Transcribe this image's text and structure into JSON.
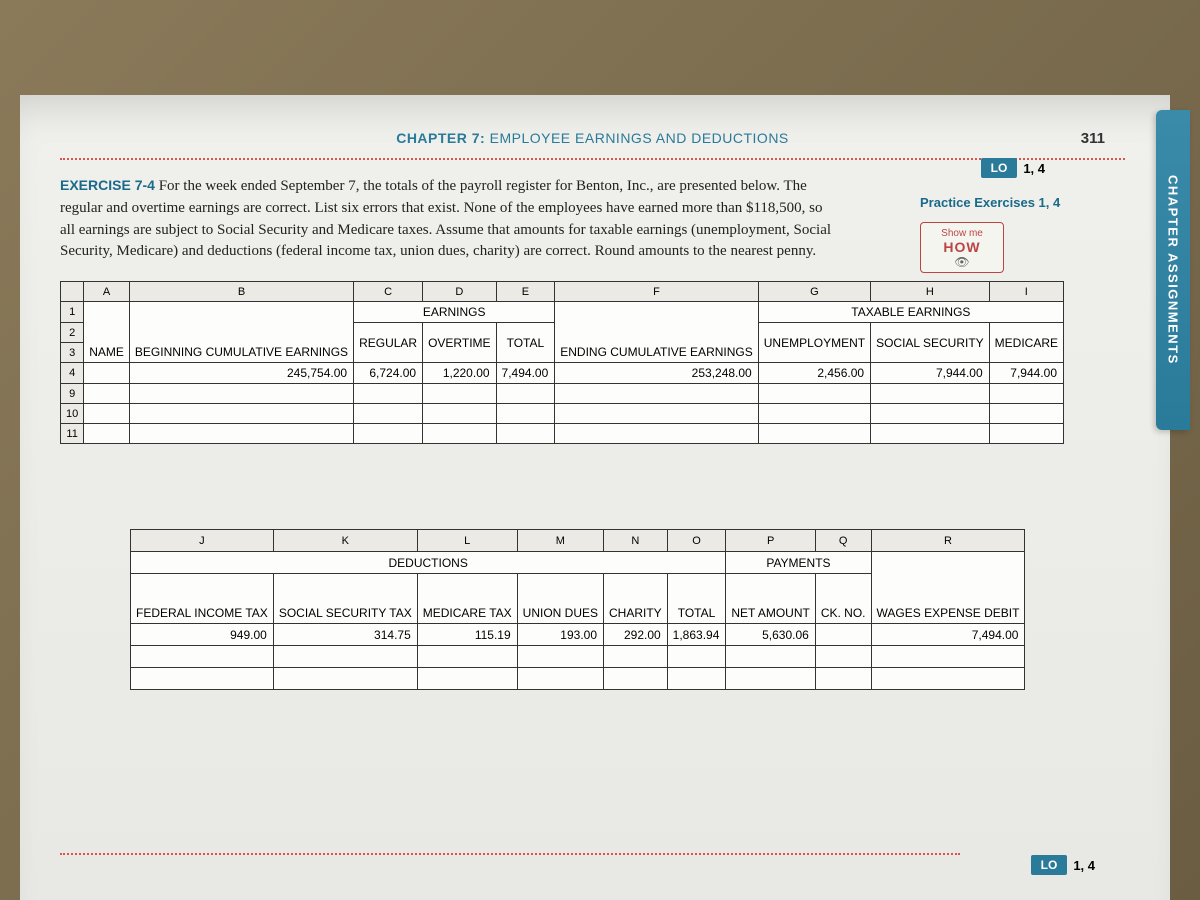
{
  "chapter_header": {
    "label": "CHAPTER 7:",
    "title": "EMPLOYEE EARNINGS AND DEDUCTIONS"
  },
  "page_number": "311",
  "lo": {
    "label": "LO",
    "value": "1, 4"
  },
  "side_tab": "CHAPTER ASSIGNMENTS",
  "side": {
    "practice": "Practice Exercises 1, 4",
    "showme_top": "Show me",
    "showme_how": "HOW"
  },
  "exercise": {
    "title": "EXERCISE 7-4",
    "body": "For the week ended September 7, the totals of the payroll register for Benton, Inc., are presented below. The regular and overtime earnings are correct. List six errors that exist. None of the employees have earned more than $118,500, so all earnings are subject to Social Security and Medicare taxes. Assume that amounts for taxable earnings (unemployment, Social Security, Medicare) and deductions (federal income tax, union dues, charity) are correct. Round amounts to the nearest penny."
  },
  "table1": {
    "cols": [
      "A",
      "B",
      "C",
      "D",
      "E",
      "F",
      "G",
      "H",
      "I"
    ],
    "rows_left": [
      "1",
      "2",
      "3",
      "4",
      "9",
      "10",
      "11"
    ],
    "section_earnings": "EARNINGS",
    "section_taxable": "TAXABLE EARNINGS",
    "hdr": {
      "name": "NAME",
      "beg_cum": "BEGINNING CUMULATIVE EARNINGS",
      "regular": "REGULAR",
      "overtime": "OVERTIME",
      "total": "TOTAL",
      "end_cum": "ENDING CUMULATIVE EARNINGS",
      "unemp": "UNEMPLOYMENT",
      "ss": "SOCIAL SECURITY",
      "medicare": "MEDICARE"
    },
    "vals": {
      "beg_cum": "245,754.00",
      "regular": "6,724.00",
      "overtime": "1,220.00",
      "total": "7,494.00",
      "end_cum": "253,248.00",
      "unemp": "2,456.00",
      "ss": "7,944.00",
      "medicare": "7,944.00"
    }
  },
  "table2": {
    "cols": [
      "J",
      "K",
      "L",
      "M",
      "N",
      "O",
      "P",
      "Q",
      "R"
    ],
    "section_ded": "DEDUCTIONS",
    "section_pay": "PAYMENTS",
    "hdr": {
      "fit": "FEDERAL INCOME TAX",
      "sst": "SOCIAL SECURITY TAX",
      "medt": "MEDICARE TAX",
      "union": "UNION DUES",
      "charity": "CHARITY",
      "total": "TOTAL",
      "net": "NET AMOUNT",
      "ckno": "CK. NO.",
      "wages": "WAGES EXPENSE DEBIT"
    },
    "vals": {
      "fit": "949.00",
      "sst": "314.75",
      "medt": "115.19",
      "union": "193.00",
      "charity": "292.00",
      "total": "1,863.94",
      "net": "5,630.06",
      "wages": "7,494.00"
    }
  },
  "colors": {
    "blue": "#2a7a9a",
    "red": "#d9534f",
    "paper": "#f0f0ec",
    "cell_bg": "#fdfdfb",
    "hdr_bg": "#eceae4"
  }
}
